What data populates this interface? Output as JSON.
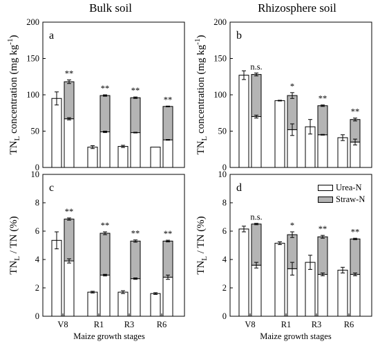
{
  "figure": {
    "col_titles": [
      "Bulk soil",
      "Rhizosphere soil"
    ],
    "xlabel": "Maize growth stages",
    "legend": [
      {
        "name": "Urea-N",
        "color": "#ffffff"
      },
      {
        "name": "Straw-N",
        "color": "#b4b4b4"
      }
    ]
  },
  "chart_data": [
    {
      "type": "bar",
      "panel": "a",
      "column": "Bulk soil",
      "ylabel": "TNL concentration (mg kg-1)",
      "ylim": [
        0,
        200
      ],
      "yticks": [
        0,
        50,
        100,
        150,
        200
      ],
      "categories": [
        "V8",
        "R1",
        "R3",
        "R6"
      ],
      "show_xticks": false,
      "series": [
        {
          "name": "Urea-N",
          "values": [
            95,
            28,
            29,
            28
          ],
          "errors": [
            9,
            2,
            1.5,
            0
          ]
        },
        {
          "name": "Urea-N",
          "values": [
            67,
            49,
            48,
            38
          ],
          "errors": [
            1.5,
            1,
            0.5,
            0.5
          ]
        },
        {
          "name": "Straw-N",
          "values": [
            51,
            50,
            48,
            46
          ],
          "errors": [
            2.5,
            1,
            1,
            0.5
          ]
        }
      ],
      "annotations": [
        "**",
        "**",
        "**",
        "**"
      ]
    },
    {
      "type": "bar",
      "panel": "b",
      "column": "Rhizosphere soil",
      "ylabel": "TNL concentration (mg kg-1)",
      "ylim": [
        0,
        200
      ],
      "yticks": [
        0,
        50,
        100,
        150,
        200
      ],
      "categories": [
        "V8",
        "R1",
        "R3",
        "R6"
      ],
      "show_xticks": false,
      "series": [
        {
          "name": "Urea-N",
          "values": [
            127,
            92,
            56,
            41
          ],
          "errors": [
            6,
            0.5,
            10,
            4
          ]
        },
        {
          "name": "Urea-N",
          "values": [
            70,
            52,
            45,
            35
          ],
          "errors": [
            2,
            8,
            0.5,
            4
          ]
        },
        {
          "name": "Straw-N",
          "values": [
            58,
            47,
            40,
            31
          ],
          "errors": [
            2,
            4,
            1,
            2
          ]
        }
      ],
      "annotations": [
        "n.s.",
        "*",
        "**",
        "**"
      ]
    },
    {
      "type": "bar",
      "panel": "c",
      "column": "Bulk soil",
      "ylabel": "TNL / TN (%)",
      "ylim": [
        0,
        10
      ],
      "yticks": [
        0,
        2,
        4,
        6,
        8,
        10
      ],
      "categories": [
        "V8",
        "R1",
        "R3",
        "R6"
      ],
      "show_xticks": true,
      "series": [
        {
          "name": "Urea-N",
          "values": [
            5.35,
            1.7,
            1.7,
            1.6
          ],
          "errors": [
            0.6,
            0.06,
            0.1,
            0.06
          ]
        },
        {
          "name": "Urea-N",
          "values": [
            3.9,
            2.9,
            2.65,
            2.75
          ],
          "errors": [
            0.15,
            0.06,
            0.05,
            0.15
          ]
        },
        {
          "name": "Straw-N",
          "values": [
            2.95,
            2.95,
            2.65,
            2.55
          ],
          "errors": [
            0.08,
            0.1,
            0.08,
            0.06
          ]
        }
      ],
      "annotations": [
        "**",
        "**",
        "**",
        "**"
      ]
    },
    {
      "type": "bar",
      "panel": "d",
      "column": "Rhizosphere soil",
      "ylabel": "TNL / TN (%)",
      "ylim": [
        0,
        10
      ],
      "yticks": [
        0,
        2,
        4,
        6,
        8,
        10
      ],
      "categories": [
        "V8",
        "R1",
        "R3",
        "R6"
      ],
      "show_xticks": true,
      "series": [
        {
          "name": "Urea-N",
          "values": [
            6.15,
            5.15,
            3.8,
            3.25
          ],
          "errors": [
            0.2,
            0.1,
            0.5,
            0.2
          ]
        },
        {
          "name": "Urea-N",
          "values": [
            3.6,
            3.35,
            2.95,
            2.95
          ],
          "errors": [
            0.2,
            0.45,
            0.1,
            0.1
          ]
        },
        {
          "name": "Straw-N",
          "values": [
            2.9,
            2.4,
            2.65,
            2.5
          ],
          "errors": [
            0.05,
            0.2,
            0.1,
            0.05
          ]
        }
      ],
      "annotations": [
        "n.s.",
        "*",
        "**",
        "**"
      ]
    }
  ]
}
